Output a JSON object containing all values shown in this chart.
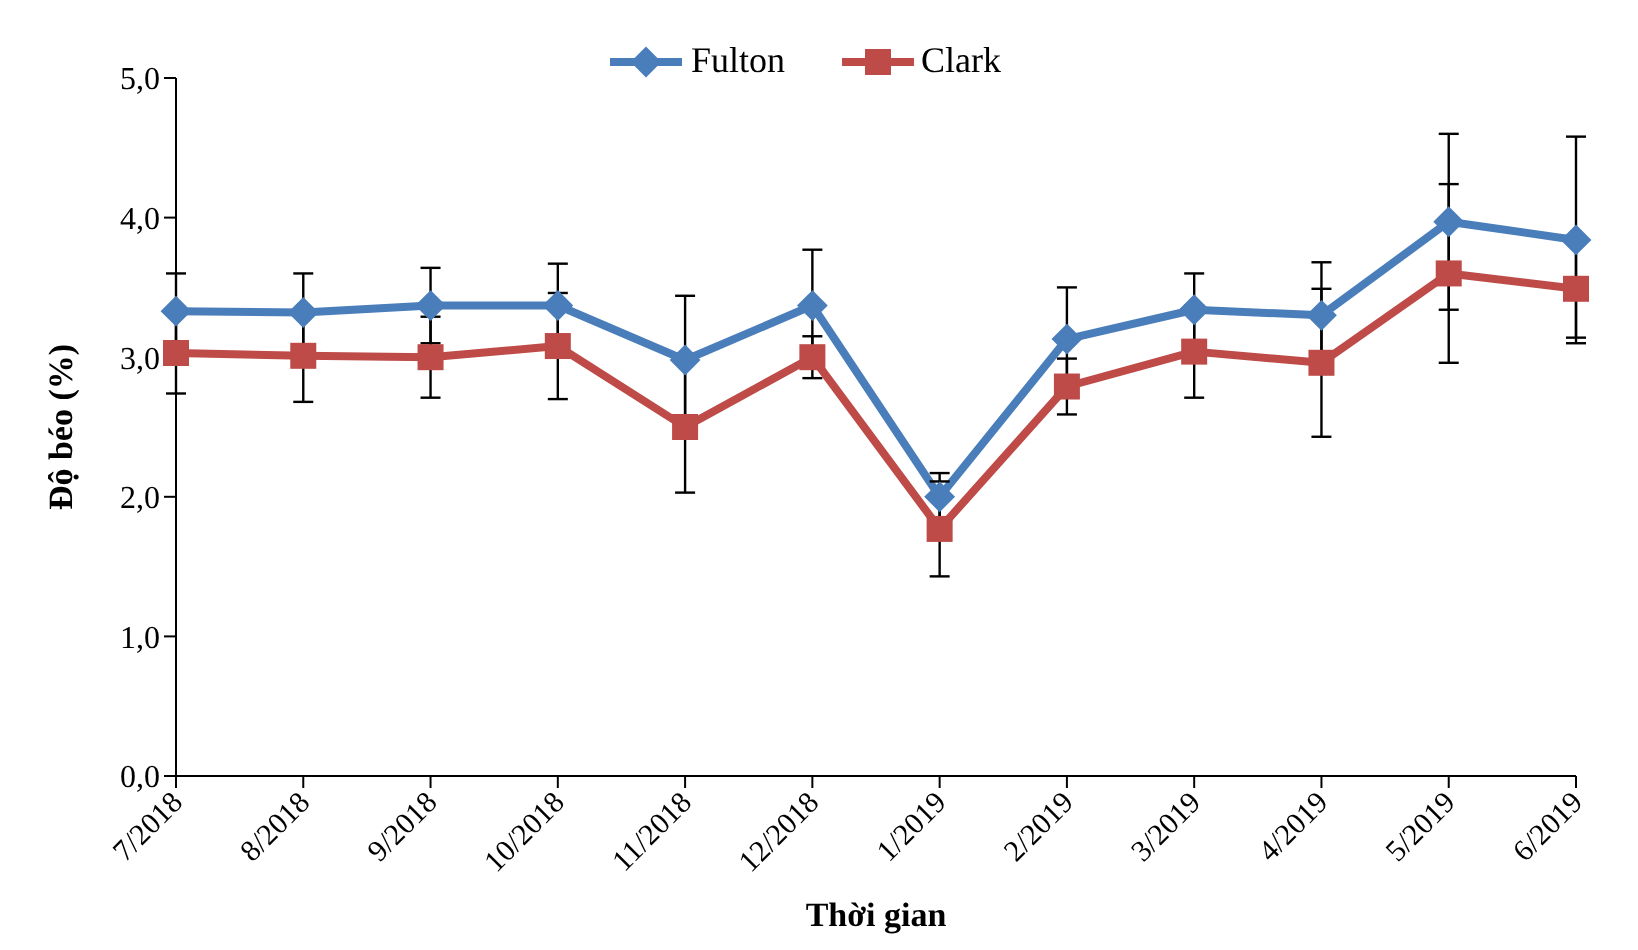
{
  "chart_data": {
    "type": "line",
    "xlabel": "Thời gian",
    "ylabel": "Độ béo (%)",
    "categories": [
      "7/2018",
      "8/2018",
      "9/2018",
      "10/2018",
      "11/2018",
      "12/2018",
      "1/2019",
      "2/2019",
      "3/2019",
      "4/2019",
      "5/2019",
      "6/2019"
    ],
    "series": [
      {
        "name": "Fulton",
        "color": "#4a7ebb",
        "marker": "diamond",
        "values": [
          3.33,
          3.32,
          3.37,
          3.37,
          2.98,
          3.37,
          2.0,
          3.13,
          3.34,
          3.3,
          3.97,
          3.84
        ],
        "errors": [
          0.27,
          0.28,
          0.27,
          0.3,
          0.46,
          0.4,
          0.17,
          0.37,
          0.26,
          0.38,
          0.63,
          0.74
        ]
      },
      {
        "name": "Clark",
        "color": "#be4b48",
        "marker": "square",
        "values": [
          3.03,
          3.01,
          3.0,
          3.08,
          2.5,
          3.0,
          1.77,
          2.79,
          3.04,
          2.96,
          3.6,
          3.49
        ],
        "errors": [
          0.29,
          0.33,
          0.29,
          0.38,
          0.47,
          0.15,
          0.34,
          0.2,
          0.33,
          0.53,
          0.64,
          0.35
        ]
      }
    ],
    "ylim": [
      0,
      5
    ],
    "yticks": [
      {
        "value": 0,
        "label": "0,0"
      },
      {
        "value": 1,
        "label": "1,0"
      },
      {
        "value": 2,
        "label": "2,0"
      },
      {
        "value": 3,
        "label": "3,0"
      },
      {
        "value": 4,
        "label": "4,0"
      },
      {
        "value": 5,
        "label": "5,0"
      }
    ],
    "grid": false,
    "legend": "top",
    "line_style": "solid"
  }
}
